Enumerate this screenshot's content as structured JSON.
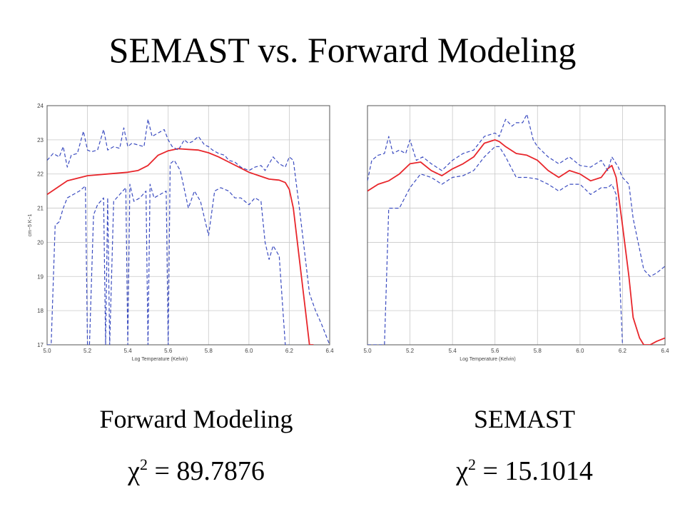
{
  "slide": {
    "title": "SEMAST vs. Forward Modeling",
    "left_caption": "Forward Modeling",
    "right_caption": "SEMAST",
    "left_chi_symbol": "χ",
    "left_chi_exp": "2",
    "left_chi_value": " = 89.7876",
    "right_chi_symbol": "χ",
    "right_chi_exp": "2",
    "right_chi_value": " = 15.1014"
  },
  "chart_data": [
    {
      "type": "line",
      "xlabel": "Log Temperature (Kelvin)",
      "ylabel": "cm−5 K−1",
      "xlim": [
        5.0,
        6.4
      ],
      "ylim": [
        17,
        24
      ],
      "xticks": [
        "5.0",
        "5.2",
        "5.4",
        "5.6",
        "5.8",
        "6.0",
        "6.2",
        "6.4"
      ],
      "yticks": [
        "17",
        "18",
        "19",
        "20",
        "21",
        "22",
        "23",
        "24"
      ],
      "grid": true,
      "series": [
        {
          "color": "#e8262b",
          "dash": "solid",
          "x": [
            5.0,
            5.05,
            5.1,
            5.2,
            5.3,
            5.4,
            5.45,
            5.5,
            5.55,
            5.6,
            5.65,
            5.7,
            5.75,
            5.8,
            5.85,
            5.9,
            5.95,
            6.0,
            6.05,
            6.1,
            6.15,
            6.18,
            6.2,
            6.22,
            6.25,
            6.28,
            6.3,
            6.32
          ],
          "y": [
            21.4,
            21.6,
            21.8,
            21.95,
            22.0,
            22.05,
            22.1,
            22.25,
            22.55,
            22.68,
            22.74,
            22.72,
            22.7,
            22.62,
            22.5,
            22.35,
            22.2,
            22.05,
            21.95,
            21.85,
            21.82,
            21.75,
            21.55,
            21.0,
            19.5,
            18.0,
            17.0,
            17.0
          ]
        },
        {
          "color": "#3b4cc0",
          "dash": "dashed",
          "x": [
            5.0,
            5.03,
            5.06,
            5.08,
            5.1,
            5.12,
            5.15,
            5.18,
            5.2,
            5.22,
            5.25,
            5.28,
            5.3,
            5.33,
            5.36,
            5.38,
            5.4,
            5.42,
            5.45,
            5.48,
            5.5,
            5.52,
            5.55,
            5.58,
            5.6,
            5.62,
            5.65,
            5.68,
            5.7,
            5.72,
            5.75,
            5.78,
            5.8,
            5.82,
            5.85,
            5.88,
            5.9,
            5.93,
            5.96,
            6.0,
            6.03,
            6.06,
            6.08,
            6.1,
            6.12,
            6.15,
            6.18,
            6.2,
            6.22,
            6.25,
            6.28,
            6.3,
            6.33,
            6.36,
            6.4
          ],
          "y": [
            22.4,
            22.6,
            22.5,
            22.8,
            22.2,
            22.55,
            22.6,
            23.25,
            22.7,
            22.65,
            22.7,
            23.3,
            22.7,
            22.8,
            22.75,
            23.35,
            22.8,
            22.9,
            22.85,
            22.8,
            23.6,
            23.1,
            23.2,
            23.3,
            23.0,
            22.8,
            22.7,
            23.0,
            22.9,
            22.95,
            23.1,
            22.85,
            22.8,
            22.7,
            22.6,
            22.55,
            22.4,
            22.35,
            22.2,
            22.1,
            22.2,
            22.25,
            22.1,
            22.3,
            22.5,
            22.3,
            22.2,
            22.5,
            22.4,
            21.0,
            19.5,
            18.5,
            18.0,
            17.6,
            17.0
          ]
        },
        {
          "color": "#3b4cc0",
          "dash": "dashed",
          "x": [
            5.0,
            5.02,
            5.04,
            5.06,
            5.08,
            5.1,
            5.13,
            5.16,
            5.19,
            5.2,
            5.21,
            5.23,
            5.25,
            5.28,
            5.29,
            5.3,
            5.31,
            5.33,
            5.36,
            5.39,
            5.4,
            5.41,
            5.43,
            5.46,
            5.49,
            5.5,
            5.51,
            5.53,
            5.56,
            5.59,
            5.6,
            5.61,
            5.63,
            5.66,
            5.7,
            5.73,
            5.76,
            5.8,
            5.83,
            5.86,
            5.9,
            5.93,
            5.96,
            6.0,
            6.03,
            6.06,
            6.08,
            6.1,
            6.12,
            6.15,
            6.18,
            6.2
          ],
          "y": [
            17.0,
            17.0,
            20.5,
            20.6,
            21.0,
            21.3,
            21.4,
            21.5,
            21.65,
            17.0,
            17.0,
            20.8,
            21.1,
            21.3,
            17.0,
            21.3,
            17.0,
            21.2,
            21.4,
            21.6,
            17.0,
            21.7,
            21.2,
            21.3,
            21.5,
            17.0,
            21.7,
            21.3,
            21.4,
            21.5,
            17.0,
            22.3,
            22.4,
            22.1,
            21.0,
            21.5,
            21.2,
            20.2,
            21.5,
            21.6,
            21.5,
            21.3,
            21.3,
            21.1,
            21.3,
            21.2,
            20.0,
            19.5,
            19.9,
            19.6,
            17.0,
            17.0
          ]
        }
      ]
    },
    {
      "type": "line",
      "xlabel": "Log Temperature (Kelvin)",
      "ylabel": "",
      "xlim": [
        5.0,
        6.4
      ],
      "ylim": [
        17,
        24
      ],
      "xticks": [
        "5.0",
        "5.2",
        "5.4",
        "5.6",
        "5.8",
        "6.0",
        "6.2",
        "6.4"
      ],
      "yticks": [],
      "grid": true,
      "series": [
        {
          "color": "#e8262b",
          "dash": "solid",
          "x": [
            5.0,
            5.05,
            5.1,
            5.15,
            5.2,
            5.25,
            5.3,
            5.35,
            5.4,
            5.45,
            5.5,
            5.55,
            5.6,
            5.62,
            5.65,
            5.7,
            5.75,
            5.8,
            5.85,
            5.9,
            5.95,
            6.0,
            6.05,
            6.1,
            6.13,
            6.15,
            6.17,
            6.2,
            6.23,
            6.25,
            6.28,
            6.3,
            6.33,
            6.36,
            6.4
          ],
          "y": [
            21.5,
            21.7,
            21.8,
            22.0,
            22.3,
            22.35,
            22.1,
            21.95,
            22.15,
            22.3,
            22.5,
            22.9,
            23.0,
            22.95,
            22.8,
            22.6,
            22.55,
            22.4,
            22.1,
            21.9,
            22.1,
            22.0,
            21.8,
            21.9,
            22.15,
            22.25,
            21.9,
            20.5,
            19.0,
            17.8,
            17.2,
            17.0,
            17.0,
            17.1,
            17.2
          ]
        },
        {
          "color": "#3b4cc0",
          "dash": "dashed",
          "x": [
            5.0,
            5.02,
            5.05,
            5.08,
            5.1,
            5.12,
            5.15,
            5.18,
            5.2,
            5.23,
            5.26,
            5.3,
            5.35,
            5.4,
            5.45,
            5.5,
            5.55,
            5.6,
            5.62,
            5.65,
            5.68,
            5.7,
            5.73,
            5.75,
            5.78,
            5.8,
            5.85,
            5.9,
            5.95,
            6.0,
            6.05,
            6.1,
            6.13,
            6.15,
            6.18,
            6.2,
            6.23,
            6.25,
            6.28,
            6.3,
            6.33,
            6.36,
            6.4
          ],
          "y": [
            21.8,
            22.4,
            22.55,
            22.6,
            23.1,
            22.6,
            22.7,
            22.6,
            23.0,
            22.4,
            22.5,
            22.3,
            22.1,
            22.4,
            22.6,
            22.7,
            23.1,
            23.2,
            23.1,
            23.6,
            23.4,
            23.5,
            23.5,
            23.75,
            23.0,
            22.8,
            22.5,
            22.3,
            22.5,
            22.25,
            22.2,
            22.4,
            22.1,
            22.5,
            22.2,
            21.9,
            21.7,
            20.7,
            19.8,
            19.2,
            19.0,
            19.1,
            19.3
          ]
        },
        {
          "color": "#3b4cc0",
          "dash": "dashed",
          "x": [
            5.0,
            5.02,
            5.05,
            5.08,
            5.1,
            5.12,
            5.15,
            5.2,
            5.25,
            5.3,
            5.35,
            5.4,
            5.45,
            5.5,
            5.55,
            5.6,
            5.62,
            5.65,
            5.7,
            5.75,
            5.8,
            5.85,
            5.9,
            5.95,
            6.0,
            6.05,
            6.1,
            6.13,
            6.15,
            6.17,
            6.2
          ],
          "y": [
            17.0,
            17.0,
            17.0,
            17.0,
            21.0,
            21.0,
            21.0,
            21.6,
            22.0,
            21.9,
            21.7,
            21.9,
            21.95,
            22.1,
            22.5,
            22.8,
            22.8,
            22.5,
            21.9,
            21.9,
            21.85,
            21.7,
            21.5,
            21.7,
            21.7,
            21.4,
            21.6,
            21.6,
            21.7,
            21.4,
            17.0
          ]
        }
      ]
    }
  ]
}
